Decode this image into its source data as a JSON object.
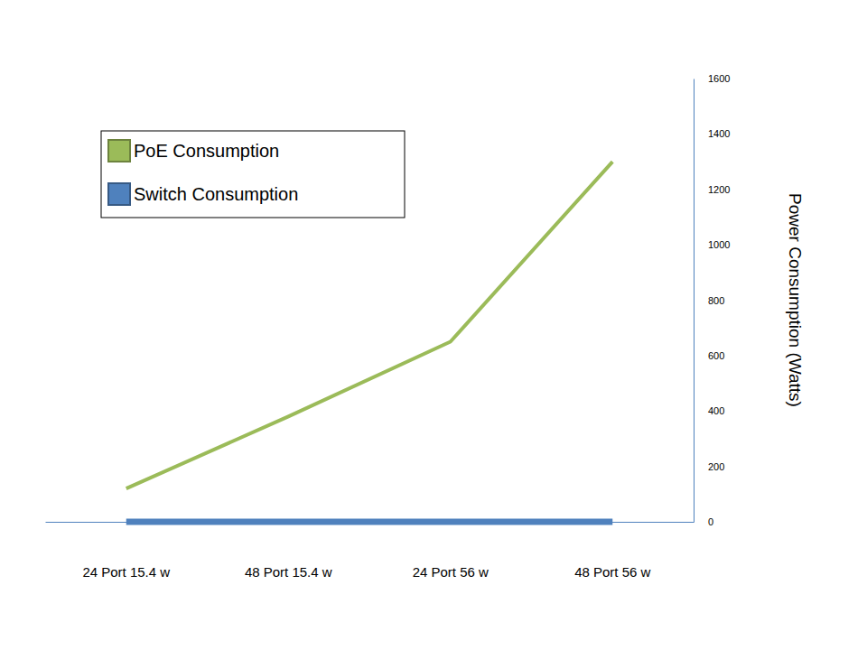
{
  "chart_data": {
    "type": "line",
    "categories": [
      "24 Port 15.4 w",
      "48 Port 15.4 w",
      "24 Port 56 w",
      "48 Port 56 w"
    ],
    "series": [
      {
        "name": "PoE Consumption",
        "color": "#9bbb59",
        "values": [
          120,
          380,
          650,
          1300
        ]
      },
      {
        "name": "Switch Consumption",
        "color": "#4f81bd",
        "values": [
          0,
          0,
          0,
          0
        ]
      }
    ],
    "ylabel": "Power Consumption (Watts)",
    "ylim": [
      0,
      1600
    ],
    "yticks": [
      0,
      200,
      400,
      600,
      800,
      1000,
      1200,
      1400,
      1600
    ],
    "legend": "upper left",
    "grid": false
  }
}
